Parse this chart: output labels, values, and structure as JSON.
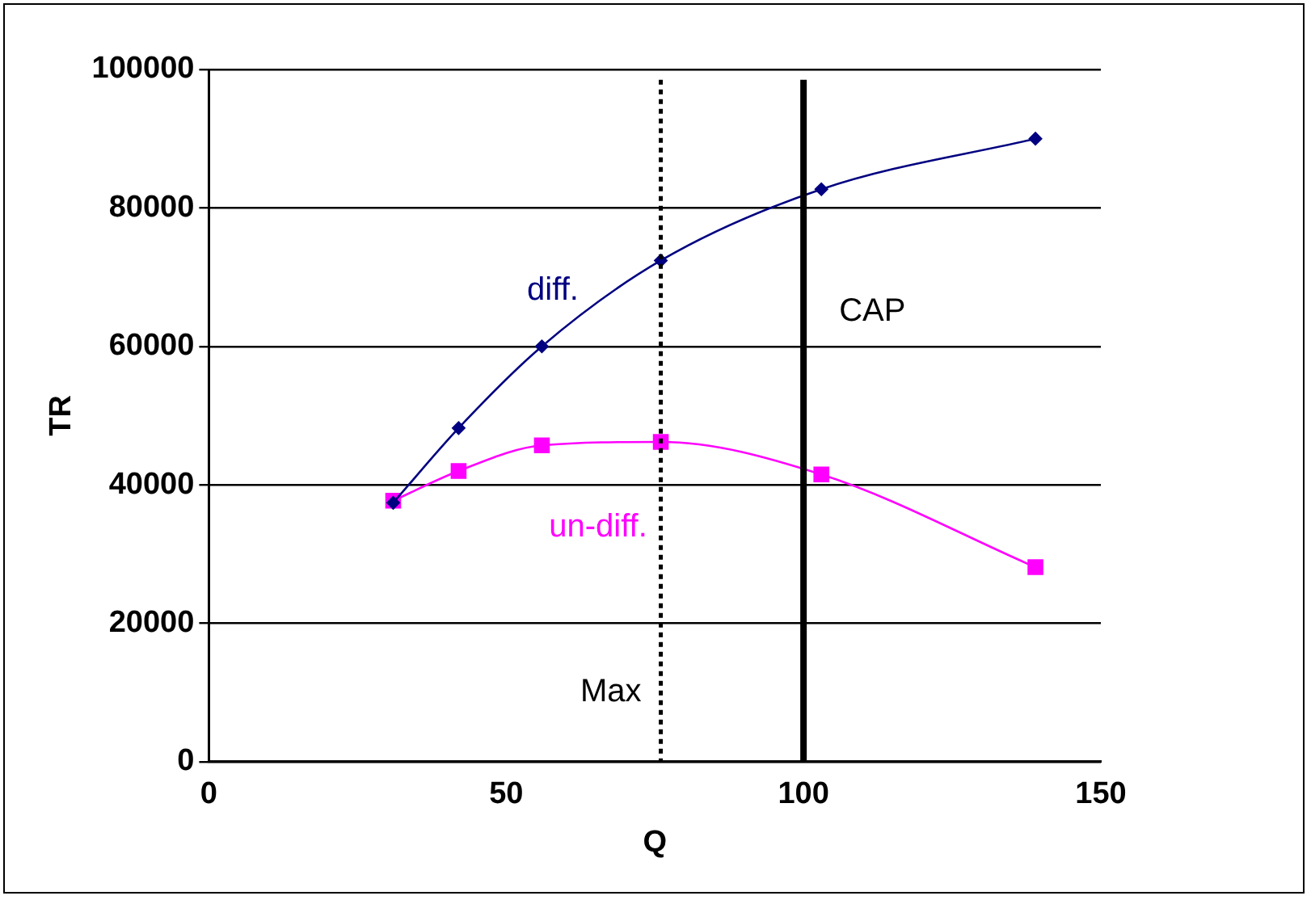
{
  "chart_data": {
    "type": "line",
    "xlabel": "Q",
    "ylabel": "TR",
    "xlim": [
      0,
      150
    ],
    "xticks": [
      0,
      50,
      100,
      150
    ],
    "ylim": [
      0,
      100000
    ],
    "yticks": [
      0,
      20000,
      40000,
      60000,
      80000,
      100000
    ],
    "grid": "y",
    "legend": false,
    "series": [
      {
        "name": "diff.",
        "color": "#000080",
        "marker": "diamond",
        "x": [
          31,
          42,
          56,
          76,
          103,
          139
        ],
        "values": [
          37400,
          48200,
          60000,
          72400,
          82700,
          90000
        ]
      },
      {
        "name": "un-diff.",
        "color": "#ff00ff",
        "marker": "square",
        "x": [
          31,
          42,
          56,
          76,
          103,
          139
        ],
        "values": [
          37700,
          42000,
          45700,
          46200,
          41500,
          28100
        ]
      }
    ],
    "ref_lines": [
      {
        "axis": "x",
        "value": 76,
        "label": "Max",
        "line_style": "dotted",
        "color": "#000000"
      },
      {
        "axis": "x",
        "value": 100,
        "label": "CAP",
        "line_style": "solid",
        "color": "#000000"
      }
    ]
  }
}
